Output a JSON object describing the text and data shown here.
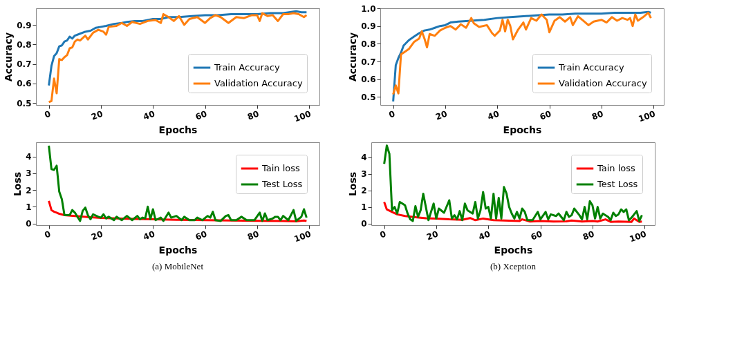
{
  "chart_data": [
    {
      "type": "line",
      "xlabel": "Epochs",
      "ylabel": "Accuracy",
      "xlim": [
        -4.95,
        103.95
      ],
      "xticks": [
        0,
        20,
        40,
        60,
        80,
        100
      ],
      "ylim": [
        0.49,
        0.985
      ],
      "yticks": [
        0.5,
        0.6,
        0.7,
        0.8,
        0.9
      ],
      "legend": "bottom right",
      "grid": false,
      "series": [
        {
          "name": "Train Accuracy",
          "color": "#1f77b4",
          "x": [
            0,
            1,
            2,
            3,
            4,
            5,
            6,
            7,
            8,
            9,
            10,
            12,
            14,
            16,
            18,
            20,
            22,
            25,
            28,
            30,
            33,
            36,
            40,
            43,
            46,
            50,
            55,
            60,
            65,
            70,
            75,
            80,
            85,
            90,
            95,
            97,
            99
          ],
          "values": [
            0.59,
            0.69,
            0.74,
            0.755,
            0.79,
            0.795,
            0.815,
            0.82,
            0.84,
            0.83,
            0.845,
            0.855,
            0.865,
            0.87,
            0.885,
            0.89,
            0.895,
            0.905,
            0.91,
            0.915,
            0.92,
            0.92,
            0.93,
            0.93,
            0.94,
            0.94,
            0.945,
            0.95,
            0.95,
            0.955,
            0.955,
            0.955,
            0.96,
            0.96,
            0.97,
            0.965,
            0.965
          ]
        },
        {
          "name": "Validation Accuracy",
          "color": "#ff7f0e",
          "x": [
            0,
            1,
            2,
            3,
            4,
            5,
            6,
            7,
            8,
            9,
            10,
            11,
            12,
            14,
            15,
            17,
            19,
            21,
            22,
            23,
            26,
            28,
            30,
            32,
            35,
            38,
            41,
            43,
            44,
            46,
            48,
            50,
            52,
            54,
            57,
            60,
            62,
            64,
            66,
            69,
            72,
            75,
            78,
            80,
            81,
            82,
            84,
            86,
            88,
            90,
            92,
            94,
            96,
            98,
            99
          ],
          "values": [
            0.505,
            0.51,
            0.625,
            0.55,
            0.725,
            0.72,
            0.735,
            0.745,
            0.78,
            0.785,
            0.815,
            0.825,
            0.82,
            0.845,
            0.825,
            0.86,
            0.875,
            0.865,
            0.85,
            0.89,
            0.895,
            0.91,
            0.895,
            0.915,
            0.905,
            0.92,
            0.925,
            0.91,
            0.955,
            0.94,
            0.92,
            0.945,
            0.9,
            0.93,
            0.94,
            0.91,
            0.935,
            0.95,
            0.94,
            0.91,
            0.94,
            0.935,
            0.95,
            0.95,
            0.92,
            0.96,
            0.945,
            0.95,
            0.92,
            0.955,
            0.955,
            0.96,
            0.955,
            0.94,
            0.95
          ]
        }
      ]
    },
    {
      "type": "line",
      "xlabel": "Epochs",
      "ylabel": "Accuracy",
      "xlim": [
        -4.95,
        103.95
      ],
      "xticks": [
        0,
        20,
        40,
        60,
        80,
        100
      ],
      "ylim": [
        0.455,
        1.0
      ],
      "yticks": [
        0.5,
        0.6,
        0.7,
        0.8,
        0.9,
        {
          "value": 1.0,
          "label": "1.0"
        }
      ],
      "legend": "bottom right",
      "grid": false,
      "series": [
        {
          "name": "Train Accuracy",
          "color": "#1f77b4",
          "x": [
            0,
            1,
            2,
            3,
            4,
            6,
            8,
            10,
            12,
            14,
            16,
            18,
            20,
            22,
            25,
            30,
            35,
            40,
            45,
            50,
            55,
            60,
            65,
            70,
            75,
            80,
            85,
            90,
            95,
            98,
            99
          ],
          "values": [
            0.475,
            0.68,
            0.72,
            0.75,
            0.79,
            0.82,
            0.84,
            0.86,
            0.875,
            0.88,
            0.89,
            0.9,
            0.905,
            0.92,
            0.925,
            0.93,
            0.935,
            0.945,
            0.95,
            0.955,
            0.96,
            0.965,
            0.965,
            0.97,
            0.97,
            0.97,
            0.975,
            0.975,
            0.975,
            0.98,
            0.975
          ]
        },
        {
          "name": "Validation Accuracy",
          "color": "#ff7f0e",
          "x": [
            0,
            1,
            2,
            3,
            4,
            6,
            8,
            10,
            11,
            12,
            13,
            14,
            16,
            18,
            20,
            22,
            24,
            26,
            28,
            30,
            31,
            33,
            36,
            38,
            39,
            41,
            42,
            43,
            44,
            45,
            46,
            48,
            50,
            51,
            53,
            55,
            57,
            59,
            60,
            62,
            64,
            66,
            68,
            69,
            71,
            73,
            75,
            77,
            80,
            82,
            84,
            86,
            88,
            90,
            91,
            92,
            93,
            94,
            96,
            98,
            99
          ],
          "values": [
            0.515,
            0.565,
            0.52,
            0.74,
            0.75,
            0.77,
            0.81,
            0.83,
            0.87,
            0.83,
            0.78,
            0.855,
            0.845,
            0.875,
            0.89,
            0.9,
            0.88,
            0.91,
            0.89,
            0.945,
            0.915,
            0.895,
            0.905,
            0.86,
            0.845,
            0.875,
            0.935,
            0.87,
            0.935,
            0.9,
            0.825,
            0.88,
            0.92,
            0.88,
            0.945,
            0.93,
            0.965,
            0.935,
            0.865,
            0.93,
            0.95,
            0.925,
            0.95,
            0.905,
            0.955,
            0.93,
            0.905,
            0.925,
            0.935,
            0.92,
            0.95,
            0.93,
            0.945,
            0.935,
            0.945,
            0.9,
            0.965,
            0.93,
            0.95,
            0.975,
            0.945
          ]
        }
      ]
    },
    {
      "type": "line",
      "xlabel": "Epochs",
      "ylabel": "Loss",
      "xlim": [
        -4.95,
        103.95
      ],
      "xticks": [
        0,
        20,
        40,
        60,
        80,
        100
      ],
      "ylim": [
        -0.1,
        4.85
      ],
      "yticks": [
        0,
        1,
        2,
        3,
        4
      ],
      "legend": "top right",
      "grid": false,
      "annotations": [
        "(a) MobileNet"
      ],
      "series": [
        {
          "name": "Tain loss",
          "color": "#ff0000",
          "x": [
            0,
            1,
            2,
            3,
            4,
            6,
            10,
            15,
            20,
            30,
            40,
            50,
            60,
            70,
            80,
            90,
            95,
            98,
            99
          ],
          "values": [
            1.35,
            0.8,
            0.7,
            0.65,
            0.58,
            0.5,
            0.45,
            0.38,
            0.33,
            0.28,
            0.25,
            0.22,
            0.2,
            0.18,
            0.16,
            0.15,
            0.13,
            0.18,
            0.15
          ]
        },
        {
          "name": "Test Loss",
          "color": "#008000",
          "x": [
            0,
            1,
            2,
            3,
            4,
            5,
            6,
            7,
            8,
            9,
            10,
            12,
            13,
            14,
            15,
            16,
            17,
            19,
            20,
            21,
            22,
            23,
            25,
            26,
            28,
            30,
            32,
            34,
            35,
            36,
            37,
            38,
            39,
            40,
            41,
            43,
            44,
            46,
            47,
            49,
            51,
            52,
            54,
            56,
            57,
            59,
            61,
            62,
            63,
            64,
            66,
            68,
            69,
            70,
            72,
            74,
            76,
            79,
            81,
            82,
            83,
            84,
            86,
            87,
            88,
            89,
            90,
            92,
            94,
            95,
            97,
            98,
            99
          ],
          "values": [
            4.65,
            3.25,
            3.2,
            3.45,
            1.9,
            1.45,
            0.5,
            0.5,
            0.5,
            0.8,
            0.65,
            0.15,
            0.75,
            0.95,
            0.5,
            0.25,
            0.55,
            0.4,
            0.35,
            0.55,
            0.3,
            0.4,
            0.2,
            0.4,
            0.2,
            0.45,
            0.2,
            0.45,
            0.25,
            0.35,
            0.3,
            1.0,
            0.25,
            0.85,
            0.2,
            0.35,
            0.15,
            0.65,
            0.35,
            0.45,
            0.2,
            0.4,
            0.2,
            0.2,
            0.35,
            0.2,
            0.45,
            0.35,
            0.7,
            0.2,
            0.15,
            0.45,
            0.5,
            0.2,
            0.2,
            0.4,
            0.2,
            0.2,
            0.65,
            0.15,
            0.6,
            0.2,
            0.3,
            0.4,
            0.4,
            0.2,
            0.45,
            0.2,
            0.8,
            0.15,
            0.4,
            0.85,
            0.35
          ]
        }
      ]
    },
    {
      "type": "line",
      "xlabel": "Epochs",
      "ylabel": "Loss",
      "xlim": [
        -4.95,
        103.95
      ],
      "xticks": [
        0,
        20,
        40,
        60,
        80,
        100
      ],
      "ylim": [
        -0.1,
        4.9
      ],
      "yticks": [
        0,
        1,
        2,
        3,
        4
      ],
      "legend": "top right",
      "grid": false,
      "annotations": [
        "(b) Xception"
      ],
      "series": [
        {
          "name": "Tain loss",
          "color": "#ff0000",
          "x": [
            0,
            1,
            3,
            5,
            8,
            12,
            16,
            20,
            25,
            30,
            33,
            35,
            38,
            42,
            48,
            52,
            53,
            56,
            60,
            65,
            70,
            72,
            76,
            80,
            82,
            85,
            87,
            90,
            95,
            96,
            98,
            99
          ],
          "values": [
            1.3,
            0.85,
            0.7,
            0.55,
            0.45,
            0.38,
            0.32,
            0.3,
            0.25,
            0.22,
            0.33,
            0.2,
            0.3,
            0.2,
            0.17,
            0.15,
            0.25,
            0.12,
            0.15,
            0.12,
            0.13,
            0.18,
            0.12,
            0.15,
            0.12,
            0.25,
            0.1,
            0.12,
            0.1,
            0.3,
            0.1,
            0.12
          ]
        },
        {
          "name": "Test Loss",
          "color": "#008000",
          "x": [
            0,
            1,
            2,
            3,
            4,
            5,
            6,
            7,
            8,
            9,
            10,
            11,
            12,
            13,
            14,
            15,
            17,
            19,
            20,
            21,
            23,
            25,
            26,
            27,
            28,
            29,
            30,
            31,
            32,
            34,
            35,
            36,
            37,
            38,
            39,
            40,
            41,
            42,
            43,
            44,
            45,
            46,
            47,
            48,
            49,
            50,
            51,
            52,
            53,
            54,
            55,
            57,
            59,
            60,
            62,
            63,
            64,
            66,
            67,
            69,
            70,
            71,
            72,
            73,
            75,
            76,
            77,
            78,
            79,
            80,
            81,
            82,
            83,
            84,
            86,
            87,
            88,
            89,
            90,
            91,
            92,
            93,
            94,
            95,
            97,
            98,
            99
          ],
          "values": [
            3.6,
            4.7,
            4.2,
            0.8,
            1.0,
            0.6,
            1.3,
            1.2,
            1.1,
            0.6,
            0.25,
            0.15,
            1.05,
            0.4,
            0.8,
            1.8,
            0.2,
            1.2,
            0.3,
            0.9,
            0.65,
            1.4,
            0.3,
            0.5,
            0.25,
            0.75,
            0.2,
            1.2,
            0.8,
            0.6,
            1.3,
            0.3,
            0.8,
            1.9,
            0.9,
            1.0,
            0.3,
            1.8,
            0.3,
            1.55,
            0.3,
            2.2,
            1.8,
            1.0,
            0.6,
            0.3,
            0.7,
            0.3,
            0.9,
            0.7,
            0.2,
            0.2,
            0.7,
            0.25,
            0.7,
            0.25,
            0.55,
            0.45,
            0.6,
            0.2,
            0.7,
            0.4,
            0.5,
            0.9,
            0.5,
            0.25,
            1.0,
            0.25,
            1.35,
            1.1,
            0.3,
            1.0,
            0.3,
            0.6,
            0.4,
            0.2,
            0.65,
            0.45,
            0.55,
            0.85,
            0.7,
            0.85,
            0.2,
            0.35,
            0.75,
            0.15,
            0.5
          ]
        }
      ]
    }
  ]
}
